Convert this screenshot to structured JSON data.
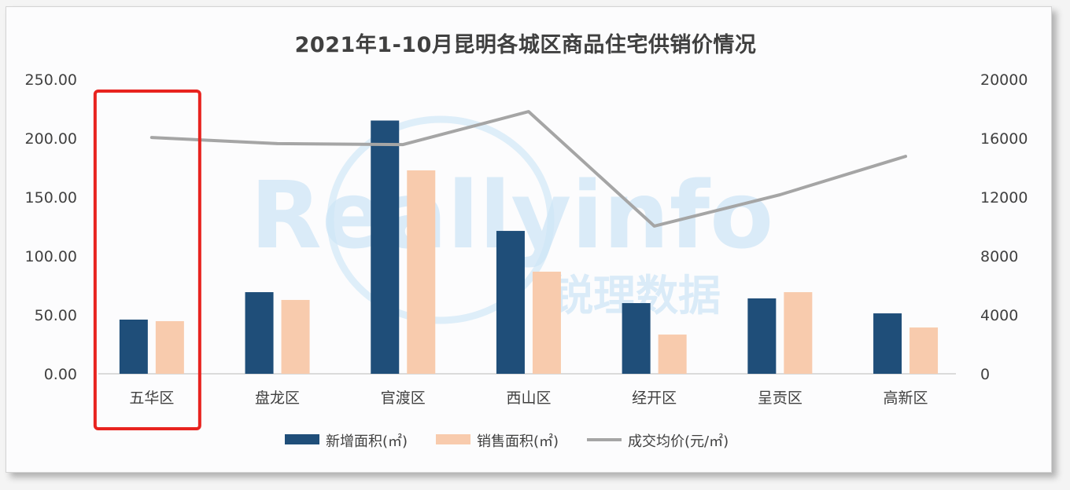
{
  "chart_data": {
    "type": "bar",
    "title": "2021年1-10月昆明各城区商品住宅供销价情况",
    "categories": [
      "五华区",
      "盘龙区",
      "官渡区",
      "西山区",
      "经开区",
      "呈贡区",
      "高新区"
    ],
    "series": [
      {
        "name": "新增面积(㎡)",
        "type": "bar",
        "axis": "left",
        "color": "#1f4e79",
        "values": [
          46.0,
          69.3,
          215.0,
          121.3,
          60.0,
          64.0,
          51.3
        ]
      },
      {
        "name": "销售面积(㎡)",
        "type": "bar",
        "axis": "left",
        "color": "#f8cbad",
        "values": [
          44.7,
          62.7,
          172.7,
          86.7,
          33.3,
          69.3,
          39.3
        ]
      },
      {
        "name": "成交均价(元/㎡)",
        "type": "line",
        "axis": "right",
        "color": "#a5a5a5",
        "values": [
          16050,
          15630,
          15570,
          17810,
          10030,
          12160,
          14770
        ]
      }
    ],
    "xlabel": "",
    "ylabel": "",
    "ylim": [
      0,
      250
    ],
    "y2lim": [
      0,
      20000
    ],
    "left_ticks": [
      "0.00",
      "50.00",
      "100.00",
      "150.00",
      "200.00",
      "250.00"
    ],
    "right_ticks": [
      "0",
      "4000",
      "8000",
      "12000",
      "16000",
      "20000"
    ],
    "grid": false,
    "legend_position": "bottom",
    "highlight": {
      "category": "五华区",
      "color": "#e8231f"
    },
    "watermark": {
      "main": "Reallyinfo",
      "sub": "锐理数据"
    }
  },
  "legend": [
    {
      "label": "新增面积(㎡)",
      "color": "#1f4e79",
      "kind": "bar"
    },
    {
      "label": "销售面积(㎡)",
      "color": "#f8cbad",
      "kind": "bar"
    },
    {
      "label": "成交均价(元/㎡)",
      "color": "#a5a5a5",
      "kind": "line"
    }
  ]
}
